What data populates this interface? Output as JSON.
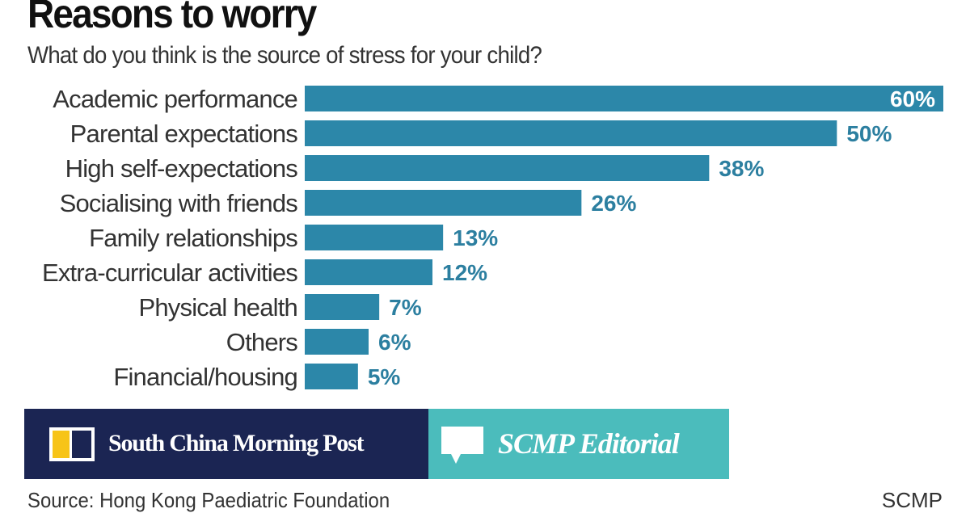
{
  "chart_data": {
    "type": "bar",
    "orientation": "horizontal",
    "title": "Reasons to worry",
    "subtitle": "What do you think is the source of stress for your child?",
    "categories": [
      "Academic performance",
      "Parental expectations",
      "High self-expectations",
      "Socialising with friends",
      "Family relationships",
      "Extra-curricular activities",
      "Physical health",
      "Others",
      "Financial/housing"
    ],
    "values": [
      60,
      50,
      38,
      26,
      13,
      12,
      7,
      6,
      5
    ],
    "value_labels": [
      "60%",
      "50%",
      "38%",
      "26%",
      "13%",
      "12%",
      "7%",
      "6%",
      "5%"
    ],
    "xlim": [
      0,
      60
    ],
    "grid": false,
    "colors": {
      "bar": "#2c87a9",
      "label": "#2c7fa0"
    }
  },
  "footer": {
    "source": "Source: Hong Kong Paediatric Foundation",
    "credit": "SCMP"
  },
  "overlay": {
    "brand": "South China Morning Post",
    "section": "SCMP Editorial",
    "colors": {
      "brand_bg": "#1b2553",
      "section_bg": "#4bbcbc",
      "logo_accent": "#f7c418"
    }
  }
}
